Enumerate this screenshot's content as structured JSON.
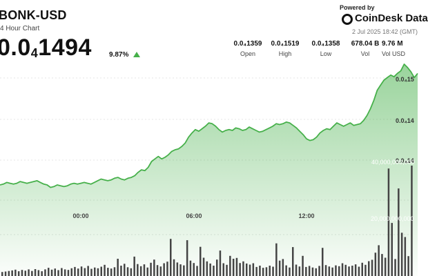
{
  "header": {
    "symbol": "BONK-USD",
    "subtitle": "4 Hour Chart",
    "price_prefix": "0.0",
    "price_sub": "4",
    "price_suffix": "1494",
    "change": "9.87%",
    "direction": "up",
    "up_color": "#46b04a"
  },
  "branding": {
    "powered": "Powered by",
    "name": "CoinDesk Data",
    "date": "2 Jul 2025 18:42 (GMT)"
  },
  "stats": [
    {
      "value": "0.0₄1359",
      "label": "Open"
    },
    {
      "value": "0.0₄1519",
      "label": "High"
    },
    {
      "value": "0.0₄1358",
      "label": "Low"
    },
    {
      "value": "678.04 B",
      "label": "Vol"
    },
    {
      "value": "9.76 M",
      "label": "Vol USD"
    }
  ],
  "chart_data": {
    "type": "area",
    "x_tick_labels": [
      "00:00",
      "06:00",
      "12:00"
    ],
    "y_tick_labels": [
      "0.0₄15",
      "0.0₄14",
      "0.0₄14"
    ],
    "volume_tick_labels": [
      "40,000,000,000",
      "20,000,000,000"
    ],
    "line_color": "#46b04a",
    "volume_color": "#444444",
    "price_series": [
      1.361e-05,
      1.362e-05,
      1.364e-05,
      1.363e-05,
      1.362e-05,
      1.363e-05,
      1.365e-05,
      1.364e-05,
      1.363e-05,
      1.364e-05,
      1.365e-05,
      1.366e-05,
      1.364e-05,
      1.362e-05,
      1.361e-05,
      1.358e-05,
      1.359e-05,
      1.361e-05,
      1.36e-05,
      1.359e-05,
      1.36e-05,
      1.362e-05,
      1.363e-05,
      1.362e-05,
      1.363e-05,
      1.364e-05,
      1.363e-05,
      1.362e-05,
      1.364e-05,
      1.366e-05,
      1.368e-05,
      1.367e-05,
      1.366e-05,
      1.367e-05,
      1.369e-05,
      1.37e-05,
      1.368e-05,
      1.367e-05,
      1.369e-05,
      1.37e-05,
      1.372e-05,
      1.376e-05,
      1.379e-05,
      1.378e-05,
      1.382e-05,
      1.389e-05,
      1.392e-05,
      1.395e-05,
      1.392e-05,
      1.394e-05,
      1.397e-05,
      1.401e-05,
      1.403e-05,
      1.404e-05,
      1.407e-05,
      1.411e-05,
      1.418e-05,
      1.423e-05,
      1.427e-05,
      1.425e-05,
      1.428e-05,
      1.431e-05,
      1.435e-05,
      1.434e-05,
      1.431e-05,
      1.427e-05,
      1.424e-05,
      1.426e-05,
      1.427e-05,
      1.426e-05,
      1.429e-05,
      1.428e-05,
      1.426e-05,
      1.427e-05,
      1.43e-05,
      1.428e-05,
      1.426e-05,
      1.424e-05,
      1.425e-05,
      1.427e-05,
      1.429e-05,
      1.431e-05,
      1.434e-05,
      1.433e-05,
      1.434e-05,
      1.436e-05,
      1.435e-05,
      1.432e-05,
      1.429e-05,
      1.425e-05,
      1.421e-05,
      1.416e-05,
      1.414e-05,
      1.415e-05,
      1.418e-05,
      1.423e-05,
      1.426e-05,
      1.428e-05,
      1.427e-05,
      1.431e-05,
      1.435e-05,
      1.433e-05,
      1.431e-05,
      1.433e-05,
      1.435e-05,
      1.432e-05,
      1.433e-05,
      1.434e-05,
      1.438e-05,
      1.444e-05,
      1.452e-05,
      1.462e-05,
      1.474e-05,
      1.48e-05,
      1.486e-05,
      1.489e-05,
      1.492e-05,
      1.49e-05,
      1.494e-05,
      1.497e-05,
      1.505e-05,
      1.501e-05,
      1.496e-05,
      1.489e-05,
      1.494e-05
    ],
    "volume_series": [
      1.5,
      1.7,
      1.9,
      2.1,
      2.4,
      1.8,
      2.3,
      2.0,
      2.5,
      1.9,
      2.6,
      2.2,
      1.8,
      2.5,
      3.1,
      2.4,
      2.8,
      2.2,
      3.0,
      2.5,
      2.3,
      2.9,
      3.4,
      2.8,
      3.6,
      3.0,
      3.8,
      2.7,
      3.2,
      2.9,
      3.5,
      4.2,
      3.1,
      2.8,
      3.3,
      6.5,
      3.9,
      4.6,
      3.3,
      2.9,
      7.3,
      4.5,
      3.7,
      4.4,
      3.2,
      5.0,
      6.2,
      4.1,
      3.6,
      4.8,
      5.4,
      14.0,
      6.3,
      5.1,
      4.4,
      4.0,
      13.5,
      5.8,
      4.9,
      3.8,
      11.0,
      6.9,
      5.5,
      4.7,
      3.9,
      6.2,
      9.6,
      4.8,
      4.2,
      7.6,
      6.5,
      6.8,
      4.9,
      5.5,
      4.7,
      4.3,
      4.8,
      3.4,
      3.9,
      3.1,
      3.3,
      3.9,
      3.5,
      12.3,
      5.8,
      6.4,
      4.0,
      3.2,
      10.9,
      4.3,
      3.6,
      7.6,
      3.4,
      3.8,
      3.2,
      2.9,
      3.8,
      10.6,
      4.1,
      3.6,
      3.2,
      4.0,
      3.7,
      4.8,
      4.2,
      3.6,
      3.9,
      4.4,
      3.5,
      5.0,
      4.2,
      5.6,
      6.1,
      8.8,
      11.6,
      8.3,
      6.9,
      40.5,
      20.0,
      6.4,
      33.0,
      16.3,
      14.7,
      7.5,
      41.6
    ]
  }
}
